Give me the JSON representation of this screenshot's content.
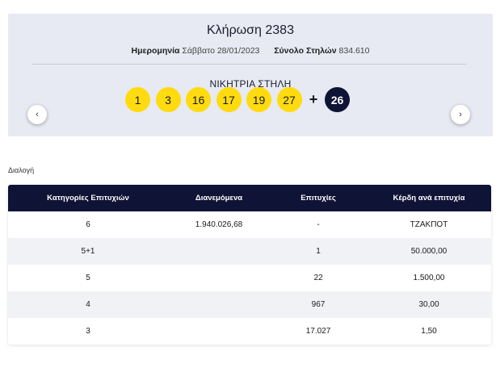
{
  "draw": {
    "title": "Κλήρωση 2383",
    "date_label": "Ημερομηνία",
    "date_value": "Σάββατο 28/01/2023",
    "columns_label": "Σύνολο Στηλών",
    "columns_value": "834.610",
    "winning_title": "ΝΙΚΗΤΡΙΑ ΣΤΗΛΗ",
    "numbers": [
      "1",
      "3",
      "16",
      "17",
      "19",
      "27"
    ],
    "plus": "+",
    "joker": "26",
    "prev_icon": "‹",
    "next_icon": "›"
  },
  "colors": {
    "ball": "#ffdb0f",
    "joker": "#0f1335",
    "header": "#0f1335",
    "card": "#e7eaf2"
  },
  "selection_label": "Διαλογή",
  "table": {
    "headers": [
      "Κατηγορίες Επιτυχιών",
      "Διανεμόμενα",
      "Επιτυχίες",
      "Κέρδη ανά επιτυχία"
    ],
    "rows": [
      [
        "6",
        "1.940.026,68",
        "-",
        "ΤΖΑΚΠΟΤ"
      ],
      [
        "5+1",
        "",
        "1",
        "50.000,00"
      ],
      [
        "5",
        "",
        "22",
        "1.500,00"
      ],
      [
        "4",
        "",
        "967",
        "30,00"
      ],
      [
        "3",
        "",
        "17.027",
        "1,50"
      ]
    ]
  }
}
